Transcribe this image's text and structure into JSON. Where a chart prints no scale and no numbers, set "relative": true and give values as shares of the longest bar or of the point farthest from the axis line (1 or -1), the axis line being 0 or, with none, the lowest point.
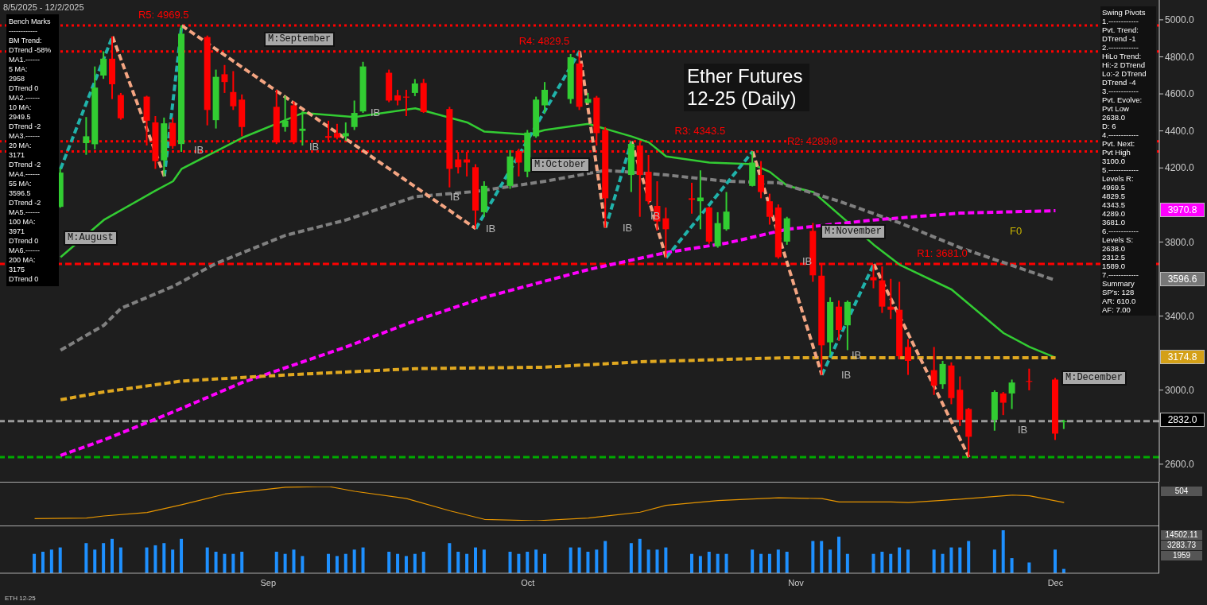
{
  "chart_data": [
    {
      "type": "candlestick",
      "title": "Ether Futures 12-25 (Daily)",
      "subtitle": "8/5/2025 - 12/2/2025",
      "tick_labels": "y",
      "x": [
        "2025-08-08",
        "2025-08-11",
        "2025-08-12",
        "2025-08-13",
        "2025-08-14",
        "2025-08-15",
        "2025-08-18",
        "2025-08-19",
        "2025-08-20",
        "2025-08-21",
        "2025-08-22",
        "2025-08-25",
        "2025-08-26",
        "2025-08-27",
        "2025-08-28",
        "2025-08-29",
        "2025-09-02",
        "2025-09-03",
        "2025-09-04",
        "2025-09-05",
        "2025-09-08",
        "2025-09-09",
        "2025-09-10",
        "2025-09-11",
        "2025-09-12",
        "2025-09-15",
        "2025-09-16",
        "2025-09-17",
        "2025-09-18",
        "2025-09-19",
        "2025-09-22",
        "2025-09-23",
        "2025-09-24",
        "2025-09-25",
        "2025-09-26",
        "2025-09-29",
        "2025-09-30",
        "2025-10-01",
        "2025-10-02",
        "2025-10-03",
        "2025-10-06",
        "2025-10-07",
        "2025-10-08",
        "2025-10-09",
        "2025-10-10",
        "2025-10-13",
        "2025-10-14",
        "2025-10-15",
        "2025-10-16",
        "2025-10-17",
        "2025-10-20",
        "2025-10-21",
        "2025-10-22",
        "2025-10-23",
        "2025-10-24",
        "2025-10-27",
        "2025-10-28",
        "2025-10-29",
        "2025-10-30",
        "2025-10-31",
        "2025-11-03",
        "2025-11-04",
        "2025-11-05",
        "2025-11-06",
        "2025-11-07",
        "2025-11-10",
        "2025-11-11",
        "2025-11-12",
        "2025-11-13",
        "2025-11-14",
        "2025-11-17",
        "2025-11-18",
        "2025-11-19",
        "2025-11-20",
        "2025-11-21",
        "2025-11-24",
        "2025-11-25",
        "2025-11-26",
        "2025-11-28",
        "2025-12-01",
        "2025-12-02"
      ],
      "ohlc": [
        [
          3990,
          4200,
          3985,
          4175
        ],
        [
          4334,
          4475,
          4271,
          4371
        ],
        [
          4328,
          4748,
          4301,
          4634
        ],
        [
          4699,
          4830,
          4681,
          4790
        ],
        [
          4790,
          4910,
          4572,
          4652
        ],
        [
          4594,
          4605,
          4460,
          4468
        ],
        [
          4585,
          4590,
          4321,
          4455
        ],
        [
          4446,
          4480,
          4195,
          4237
        ],
        [
          4241,
          4472,
          4155,
          4441
        ],
        [
          4443,
          4472,
          4304,
          4318
        ],
        [
          4329,
          4969.5,
          4287,
          4925
        ],
        [
          4907,
          4915,
          4430,
          4513
        ],
        [
          4458,
          4731,
          4413,
          4692
        ],
        [
          4706,
          4756,
          4605,
          4664
        ],
        [
          4610,
          4723,
          4513,
          4533
        ],
        [
          4569,
          4597,
          4371,
          4421
        ],
        [
          4530,
          4622,
          4329,
          4338
        ],
        [
          4421,
          4589,
          4396,
          4455
        ],
        [
          4538,
          4560,
          4329,
          4338
        ],
        [
          4400,
          4505,
          4321,
          4412
        ],
        [
          4372,
          4455,
          4346,
          4363
        ],
        [
          4388,
          4438,
          4354,
          4363
        ],
        [
          4371,
          4446,
          4346,
          4388
        ],
        [
          4421,
          4564,
          4405,
          4497
        ],
        [
          4505,
          4773,
          4497,
          4748
        ],
        [
          4714,
          4731,
          4555,
          4564
        ],
        [
          4592,
          4622,
          4538,
          4564
        ],
        [
          4585,
          4622,
          4480,
          4580
        ],
        [
          4605,
          4680,
          4588,
          4656
        ],
        [
          4659,
          4681,
          4497,
          4502
        ],
        [
          4518,
          4530,
          4095,
          4195
        ],
        [
          4246,
          4287,
          4170,
          4204
        ],
        [
          4246,
          4287,
          4154,
          4229
        ],
        [
          4204,
          4220,
          3872,
          3970
        ],
        [
          3961,
          4128,
          3936,
          4103
        ],
        [
          4103,
          4296,
          4087,
          4262
        ],
        [
          4291,
          4304,
          4154,
          4229
        ],
        [
          4180,
          4405,
          4150,
          4391
        ],
        [
          4371,
          4585,
          4363,
          4569
        ],
        [
          4538,
          4664,
          4497,
          4622
        ],
        [
          4572,
          4815,
          4547,
          4798
        ],
        [
          4764,
          4829.5,
          4513,
          4530
        ],
        [
          4552,
          4605,
          4547,
          4572
        ],
        [
          4580,
          4589,
          4321,
          4388
        ],
        [
          4405,
          4421,
          3877,
          4036
        ],
        [
          4162,
          4343.5,
          4070,
          4330
        ],
        [
          4321,
          4338,
          3936,
          4162
        ],
        [
          4179,
          4270,
          4003,
          4020
        ],
        [
          3995,
          4128,
          3861,
          3911
        ],
        [
          3928,
          3986,
          3715,
          3869
        ],
        [
          4036,
          4120,
          3953,
          4028
        ],
        [
          4020,
          4187,
          3869,
          4040
        ],
        [
          3986,
          3990,
          3790,
          3802
        ],
        [
          3777,
          3961,
          3769,
          3902
        ],
        [
          3869,
          4070,
          3861,
          3964
        ],
        [
          4103,
          4289,
          4100,
          4229
        ],
        [
          4162,
          4237,
          4036,
          4070
        ],
        [
          4020,
          4061,
          3894,
          3936
        ],
        [
          3986,
          4003,
          3710,
          3718
        ],
        [
          3802,
          3936,
          3785,
          3928
        ],
        [
          3860,
          3903,
          3585,
          3620
        ],
        [
          3618,
          3677,
          3082,
          3242
        ],
        [
          3258,
          3501,
          3191,
          3476
        ],
        [
          3451,
          3484,
          3267,
          3325
        ],
        [
          3350,
          3484,
          3216,
          3476
        ],
        [
          3610,
          3681,
          3550,
          3593
        ],
        [
          3593,
          3668,
          3417,
          3451
        ],
        [
          3451,
          3601,
          3384,
          3434
        ],
        [
          3434,
          3585,
          3166,
          3183
        ],
        [
          3233,
          3275,
          3082,
          3158
        ],
        [
          3108,
          3233,
          2974,
          3024
        ],
        [
          3032,
          3158,
          3007,
          3141
        ],
        [
          3133,
          3150,
          2924,
          2957
        ],
        [
          3002,
          3074,
          2806,
          2840
        ],
        [
          2898,
          2904,
          2638,
          2748
        ],
        [
          2840,
          2999,
          2781,
          2990
        ],
        [
          2982,
          2990,
          2865,
          2932
        ],
        [
          2982,
          3057,
          2898,
          3041
        ],
        [
          3049,
          3116,
          2999,
          3045
        ],
        [
          3057,
          3066,
          2731,
          2765
        ],
        [
          2828,
          2840,
          2790,
          2832
        ]
      ],
      "colors": [
        "#32cd32",
        "#32cd32",
        "#32cd32",
        "#32cd32",
        "#ff0000",
        "#ff0000",
        "#ff0000",
        "#ff0000",
        "#32cd32",
        "#ff0000",
        "#32cd32",
        "#ff0000",
        "#32cd32",
        "#ff0000",
        "#ff0000",
        "#ff0000",
        "#ff0000",
        "#32cd32",
        "#ff0000",
        "#32cd32",
        "#ff0000",
        "#ff0000",
        "#32cd32",
        "#32cd32",
        "#32cd32",
        "#ff0000",
        "#ff0000",
        "#ff0000",
        "#32cd32",
        "#ff0000",
        "#ff0000",
        "#ff0000",
        "#ff0000",
        "#ff0000",
        "#32cd32",
        "#32cd32",
        "#ff0000",
        "#32cd32",
        "#32cd32",
        "#32cd32",
        "#32cd32",
        "#ff0000",
        "#32cd32",
        "#ff0000",
        "#ff0000",
        "#32cd32",
        "#ff0000",
        "#ff0000",
        "#ff0000",
        "#ff0000",
        "#ff0000",
        "#32cd32",
        "#ff0000",
        "#32cd32",
        "#32cd32",
        "#32cd32",
        "#ff0000",
        "#ff0000",
        "#ff0000",
        "#32cd32",
        "#ff0000",
        "#ff0000",
        "#32cd32",
        "#ff0000",
        "#32cd32",
        "#ff0000",
        "#ff0000",
        "#ff0000",
        "#ff0000",
        "#ff0000",
        "#ff0000",
        "#32cd32",
        "#ff0000",
        "#ff0000",
        "#ff0000",
        "#32cd32",
        "#ff0000",
        "#32cd32",
        "#ff0000",
        "#ff0000",
        "#32cd32"
      ],
      "ylim": [
        2505,
        5107
      ],
      "xlim": [
        "2025-08-01",
        "2025-12-13"
      ],
      "yticks": [
        {
          "value": 2600,
          "label": "2600.0"
        },
        {
          "value": 3000,
          "label": "3000.0"
        },
        {
          "value": 3400,
          "label": "3400.0"
        },
        {
          "value": 3800,
          "label": "3800.0"
        },
        {
          "value": 4200,
          "label": "4200.0"
        },
        {
          "value": 4400,
          "label": "4400.0"
        },
        {
          "value": 4600,
          "label": "4600.0"
        },
        {
          "value": 4800,
          "label": "4800.0"
        },
        {
          "value": 5000,
          "label": "5000.0"
        }
      ],
      "series": [
        {
          "type": "line",
          "color": "#33cc33",
          "line_style": "solid",
          "x": [
            "2025-08-08",
            "2025-08-13",
            "2025-08-19",
            "2025-08-21",
            "2025-08-22",
            "2025-08-29",
            "2025-09-05",
            "2025-09-11",
            "2025-09-18",
            "2025-09-24",
            "2025-09-26",
            "2025-10-01",
            "2025-10-03",
            "2025-10-08",
            "2025-10-13",
            "2025-10-15",
            "2025-10-17",
            "2025-10-22",
            "2025-10-27",
            "2025-10-29",
            "2025-10-31",
            "2025-11-03",
            "2025-11-10",
            "2025-11-13",
            "2025-11-19",
            "2025-11-25",
            "2025-11-28",
            "2025-12-01"
          ],
          "values": [
            3718,
            3919,
            4078,
            4128,
            4195,
            4363,
            4497,
            4475,
            4522,
            4446,
            4396,
            4380,
            4405,
            4438,
            4370,
            4338,
            4262,
            4229,
            4220,
            4178,
            4103,
            4070,
            3785,
            3677,
            3543,
            3308,
            3233,
            3175
          ]
        },
        {
          "type": "line",
          "color": "#808080",
          "line_style": "dashed",
          "x": [
            "2025-08-08",
            "2025-08-13",
            "2025-08-15",
            "2025-08-21",
            "2025-08-26",
            "2025-09-03",
            "2025-09-10",
            "2025-09-18",
            "2025-09-25",
            "2025-10-03",
            "2025-10-10",
            "2025-10-17",
            "2025-10-24",
            "2025-10-30",
            "2025-11-06",
            "2025-11-13",
            "2025-11-20",
            "2025-12-01"
          ],
          "values": [
            3216,
            3350,
            3442,
            3560,
            3685,
            3836,
            3919,
            4045,
            4073,
            4128,
            4187,
            4162,
            4128,
            4120,
            4020,
            3903,
            3769,
            3593
          ]
        },
        {
          "type": "line",
          "color": "#ff00ff",
          "line_style": "dashed",
          "x": [
            "2025-08-08",
            "2025-08-13",
            "2025-08-21",
            "2025-08-29",
            "2025-09-10",
            "2025-09-18",
            "2025-09-26",
            "2025-10-08",
            "2025-10-17",
            "2025-10-24",
            "2025-10-31",
            "2025-11-10",
            "2025-11-20",
            "2025-12-01"
          ],
          "values": [
            2647,
            2731,
            2882,
            3041,
            3233,
            3375,
            3501,
            3651,
            3743,
            3794,
            3869,
            3919,
            3956,
            3969
          ]
        },
        {
          "type": "line",
          "color": "#e0a820",
          "line_style": "dashed",
          "x": [
            "2025-08-08",
            "2025-08-13",
            "2025-08-22",
            "2025-09-03",
            "2025-09-18",
            "2025-10-03",
            "2025-10-14",
            "2025-10-31",
            "2025-12-01"
          ],
          "values": [
            2948,
            2990,
            3049,
            3082,
            3116,
            3124,
            3153,
            3175,
            3175
          ]
        },
        {
          "type": "line",
          "color": "#20b2aa",
          "line_style": "dashed",
          "x": [
            "2025-08-08",
            "2025-08-14"
          ],
          "values": [
            4195,
            4910
          ]
        },
        {
          "type": "line",
          "color": "#20b2aa",
          "line_style": "dashed",
          "x": [
            "2025-08-20",
            "2025-08-22"
          ],
          "values": [
            4155,
            4969.5
          ]
        },
        {
          "type": "line",
          "color": "#20b2aa",
          "line_style": "dashed",
          "x": [
            "2025-09-25",
            "2025-10-07"
          ],
          "values": [
            3872,
            4829.5
          ]
        },
        {
          "type": "line",
          "color": "#20b2aa",
          "line_style": "dashed",
          "x": [
            "2025-10-10",
            "2025-10-13"
          ],
          "values": [
            3877,
            4343.5
          ]
        },
        {
          "type": "line",
          "color": "#20b2aa",
          "line_style": "dashed",
          "x": [
            "2025-10-17",
            "2025-10-27"
          ],
          "values": [
            3715,
            4289
          ]
        },
        {
          "type": "line",
          "color": "#20b2aa",
          "line_style": "dashed",
          "x": [
            "2025-11-04",
            "2025-11-10"
          ],
          "values": [
            3082,
            3681
          ]
        },
        {
          "type": "line",
          "color": "#f4a582",
          "line_style": "dashed",
          "x": [
            "2025-08-14",
            "2025-08-20"
          ],
          "values": [
            4910,
            4155
          ]
        },
        {
          "type": "line",
          "color": "#f4a582",
          "line_style": "dashed",
          "x": [
            "2025-08-22",
            "2025-09-25"
          ],
          "values": [
            4969.5,
            3872
          ]
        },
        {
          "type": "line",
          "color": "#f4a582",
          "line_style": "dashed",
          "x": [
            "2025-10-07",
            "2025-10-10"
          ],
          "values": [
            4829.5,
            3877
          ]
        },
        {
          "type": "line",
          "color": "#f4a582",
          "line_style": "dashed",
          "x": [
            "2025-10-13",
            "2025-10-17"
          ],
          "values": [
            4343.5,
            3715
          ]
        },
        {
          "type": "line",
          "color": "#f4a582",
          "line_style": "dashed",
          "x": [
            "2025-10-27",
            "2025-11-04"
          ],
          "values": [
            4289,
            3082
          ]
        },
        {
          "type": "line",
          "color": "#f4a582",
          "line_style": "dashed",
          "x": [
            "2025-11-10",
            "2025-11-21"
          ],
          "values": [
            3681,
            2638
          ]
        }
      ],
      "ref_lines": [
        {
          "axis": "y",
          "value": 4969.5,
          "color": "#ff0000",
          "line_style": "dotted"
        },
        {
          "axis": "y",
          "value": 4829.5,
          "color": "#ff0000",
          "line_style": "dotted"
        },
        {
          "axis": "y",
          "value": 4343.5,
          "color": "#ff0000",
          "line_style": "dotted"
        },
        {
          "axis": "y",
          "value": 4289.0,
          "color": "#ff0000",
          "line_style": "dotted"
        },
        {
          "axis": "y",
          "value": 3681.0,
          "color": "#ff0000",
          "line_style": "dashed"
        },
        {
          "axis": "y",
          "value": 2638.0,
          "color": "#00aa00",
          "line_style": "dashed"
        },
        {
          "axis": "y",
          "value": 2832.0,
          "color": "#9a9a9a",
          "line_style": "dashed"
        }
      ],
      "annotations": [
        "Bench Marks\n------------\nBM Trend:\nDTrend -58%\nMA1.------\n5 MA:\n2958\nDTrend 0\nMA2.------\n10 MA:\n2949.5\nDTrend -2\nMA3.------\n20 MA:\n3171\nDTrend -2\nMA4.------\n55 MA:\n3596.5\nDTrend -2\nMA5.------\n100 MA:\n3971\nDTrend 0\nMA6.------\n200 MA:\n3175\nDTrend 0",
        "Swing Pivots\n1.------------\nPvt. Trend:\nDTrend -1\n2.------------\nHiLo Trend:\nHi:-2 DTrend\nLo:-2 DTrend\nDTrend -4\n3.------------\nPvt. Evolve:\nPvt Low\n2638.0\nD: 6\n4.------------\nPvt. Next:\nPvt High\n3100.0\n5.------------\nLevels R:\n4969.5\n4829.5\n4343.5\n4289.0\n3681.0\n6.------------\nLevels S:\n2638.0\n2312.5\n1589.0\n7.------------\nSummary\nSP's: 128\nAR: 610.0\nAF: 7.00",
        "ETH 12-25",
        {
          "text": "R5: 4969.5",
          "x": "2025-08-20",
          "y": 4969.5
        },
        {
          "text": "R4: 4829.5",
          "x": "2025-10-03",
          "y": 4829.5
        },
        {
          "text": "R3: 4343.5",
          "x": "2025-10-21",
          "y": 4343.5
        },
        {
          "text": "R2: 4289.0",
          "x": "2025-11-03",
          "y": 4289.0
        },
        {
          "text": "R1: 3681.0",
          "x": "2025-11-18",
          "y": 3681.0
        },
        "M:August",
        "M:September",
        "M:October",
        "M:November",
        "M:December",
        "F0",
        "IB",
        "IB",
        "IB",
        "IB",
        "IB",
        "IB",
        "IB",
        "IB",
        "IB",
        "IB",
        "IB",
        "3970.8",
        "3596.6",
        "3174.8",
        "2832.0"
      ]
    },
    {
      "type": "line",
      "relative": true,
      "tick_labels": false,
      "color": "#e69500",
      "x": [
        "2025-08-05",
        "2025-08-11",
        "2025-08-13",
        "2025-08-18",
        "2025-08-22",
        "2025-08-27",
        "2025-09-03",
        "2025-09-08",
        "2025-09-11",
        "2025-09-17",
        "2025-09-22",
        "2025-09-26",
        "2025-10-02",
        "2025-10-08",
        "2025-10-14",
        "2025-10-17",
        "2025-10-23",
        "2025-10-28",
        "2025-10-30",
        "2025-11-04",
        "2025-11-06",
        "2025-11-12",
        "2025-11-14",
        "2025-11-20",
        "2025-11-26",
        "2025-11-28",
        "2025-12-02"
      ],
      "values": [
        0.06,
        0.08,
        0.14,
        0.24,
        0.47,
        0.78,
        0.98,
        1,
        0.86,
        0.65,
        0.29,
        0.04,
        0,
        0.08,
        0.25,
        0.45,
        0.59,
        0.65,
        0.67,
        0.65,
        0.55,
        0.55,
        0.53,
        0.63,
        0.75,
        0.73,
        0.53
      ],
      "xlim": [
        "2025-08-01",
        "2025-12-13"
      ],
      "annotations": [
        "504"
      ]
    },
    {
      "type": "bar",
      "relative": true,
      "tick_labels": "x",
      "color": "#1e90ff",
      "x": [
        "2025-08-05",
        "2025-08-06",
        "2025-08-07",
        "2025-08-08",
        "2025-08-11",
        "2025-08-12",
        "2025-08-13",
        "2025-08-14",
        "2025-08-15",
        "2025-08-18",
        "2025-08-19",
        "2025-08-20",
        "2025-08-21",
        "2025-08-22",
        "2025-08-25",
        "2025-08-26",
        "2025-08-27",
        "2025-08-28",
        "2025-08-29",
        "2025-09-02",
        "2025-09-03",
        "2025-09-04",
        "2025-09-05",
        "2025-09-08",
        "2025-09-09",
        "2025-09-10",
        "2025-09-11",
        "2025-09-12",
        "2025-09-15",
        "2025-09-16",
        "2025-09-17",
        "2025-09-18",
        "2025-09-19",
        "2025-09-22",
        "2025-09-23",
        "2025-09-24",
        "2025-09-25",
        "2025-09-26",
        "2025-09-29",
        "2025-09-30",
        "2025-10-01",
        "2025-10-02",
        "2025-10-03",
        "2025-10-06",
        "2025-10-07",
        "2025-10-08",
        "2025-10-09",
        "2025-10-10",
        "2025-10-13",
        "2025-10-14",
        "2025-10-15",
        "2025-10-16",
        "2025-10-17",
        "2025-10-20",
        "2025-10-21",
        "2025-10-22",
        "2025-10-23",
        "2025-10-24",
        "2025-10-27",
        "2025-10-28",
        "2025-10-29",
        "2025-10-30",
        "2025-10-31",
        "2025-11-03",
        "2025-11-04",
        "2025-11-05",
        "2025-11-06",
        "2025-11-07",
        "2025-11-10",
        "2025-11-11",
        "2025-11-12",
        "2025-11-13",
        "2025-11-14",
        "2025-11-17",
        "2025-11-18",
        "2025-11-19",
        "2025-11-20",
        "2025-11-21",
        "2025-11-24",
        "2025-11-25",
        "2025-11-26",
        "2025-11-28",
        "2025-12-01",
        "2025-12-02"
      ],
      "values": [
        0.45,
        0.5,
        0.55,
        0.6,
        0.7,
        0.55,
        0.7,
        0.8,
        0.6,
        0.6,
        0.65,
        0.7,
        0.55,
        0.8,
        0.6,
        0.5,
        0.45,
        0.45,
        0.5,
        0.5,
        0.45,
        0.55,
        0.4,
        0.45,
        0.4,
        0.45,
        0.55,
        0.6,
        0.5,
        0.45,
        0.4,
        0.45,
        0.5,
        0.7,
        0.5,
        0.45,
        0.6,
        0.55,
        0.5,
        0.45,
        0.5,
        0.55,
        0.45,
        0.6,
        0.6,
        0.5,
        0.55,
        0.75,
        0.7,
        0.8,
        0.55,
        0.55,
        0.6,
        0.45,
        0.4,
        0.5,
        0.45,
        0.45,
        0.55,
        0.45,
        0.45,
        0.55,
        0.5,
        0.75,
        0.75,
        0.55,
        0.85,
        0.45,
        0.45,
        0.5,
        0.45,
        0.6,
        0.55,
        0.55,
        0.45,
        0.6,
        0.6,
        0.75,
        0.55,
        1,
        0.35,
        0.25,
        0.55,
        0.1
      ],
      "xticks": [
        {
          "value": "2025-09-01",
          "label": "Sep"
        },
        {
          "value": "2025-10-01",
          "label": "Oct"
        },
        {
          "value": "2025-11-01",
          "label": "Nov"
        },
        {
          "value": "2025-12-01",
          "label": "Dec"
        }
      ],
      "xlim": [
        "2025-08-01",
        "2025-12-13"
      ],
      "annotations": [
        "14502.11",
        "3283.73",
        "1959"
      ]
    }
  ]
}
